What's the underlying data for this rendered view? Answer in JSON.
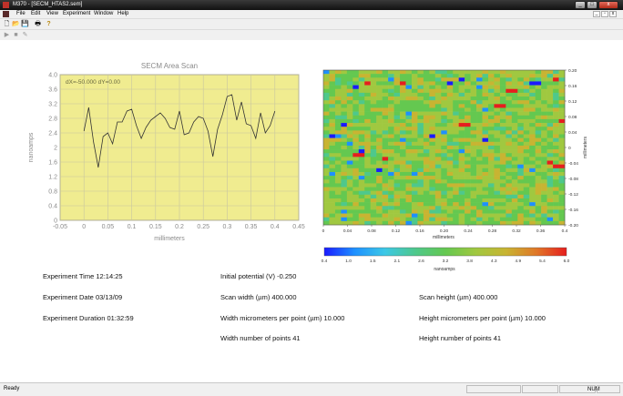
{
  "window": {
    "title": "M370 - [SECM_HTAS2.sem]",
    "minimize": "_",
    "maximize": "□",
    "close": "x"
  },
  "menu": [
    {
      "label": "File"
    },
    {
      "label": "Edit"
    },
    {
      "label": "View"
    },
    {
      "label": "Experiment"
    },
    {
      "label": "Window"
    },
    {
      "label": "Help"
    }
  ],
  "mdi_controls": {
    "minimize": "_",
    "restore": "▫",
    "close": "x"
  },
  "toolbar1": [
    {
      "name": "new-file-icon",
      "glyph": "🗋"
    },
    {
      "name": "open-folder-icon",
      "glyph": "📂"
    },
    {
      "name": "save-icon",
      "glyph": "💾"
    },
    {
      "name": "print-icon",
      "glyph": "🖶"
    },
    {
      "name": "help-icon",
      "glyph": "?"
    }
  ],
  "toolbar2": [
    {
      "name": "play-icon",
      "glyph": "▶"
    },
    {
      "name": "stop-icon",
      "glyph": "■"
    },
    {
      "name": "pen-icon",
      "glyph": "✎"
    }
  ],
  "line_chart": {
    "title": "SECM Area Scan",
    "xlabel": "millimeters",
    "ylabel": "nanoamps",
    "readout": "dX=-50.000   dY=0.00",
    "plot_bg": "#f0ec90",
    "line_color": "#333333"
  },
  "chart_data": [
    {
      "type": "line",
      "title": "SECM Area Scan",
      "xlabel": "millimeters",
      "ylabel": "nanoamps",
      "xlim": [
        -0.05,
        0.45
      ],
      "ylim": [
        0,
        4.0
      ],
      "xticks": [
        "-0.05",
        "0",
        "0.05",
        "0.1",
        "0.15",
        "0.2",
        "0.25",
        "0.3",
        "0.35",
        "0.4",
        "0.45"
      ],
      "yticks": [
        "0",
        "0.4",
        "0.8",
        "1.2",
        "1.6",
        "2",
        "2.4",
        "2.8",
        "3.2",
        "3.6",
        "4.0"
      ],
      "grid": true,
      "series": [
        {
          "x": [
            0.0,
            0.01,
            0.02,
            0.03,
            0.04,
            0.05,
            0.06,
            0.07,
            0.08,
            0.09,
            0.1,
            0.11,
            0.12,
            0.13,
            0.14,
            0.15,
            0.16,
            0.17,
            0.18,
            0.19,
            0.2,
            0.21,
            0.22,
            0.23,
            0.24,
            0.25,
            0.26,
            0.27,
            0.28,
            0.29,
            0.3,
            0.31,
            0.32,
            0.33,
            0.34,
            0.35,
            0.36,
            0.37,
            0.38,
            0.39,
            0.4
          ],
          "y": [
            2.45,
            3.1,
            2.15,
            1.45,
            2.3,
            2.4,
            2.1,
            2.7,
            2.7,
            3.0,
            3.05,
            2.6,
            2.25,
            2.55,
            2.75,
            2.85,
            2.95,
            2.8,
            2.55,
            2.5,
            3.0,
            2.35,
            2.4,
            2.7,
            2.85,
            2.8,
            2.45,
            1.75,
            2.5,
            2.9,
            3.4,
            3.45,
            2.75,
            3.25,
            2.65,
            2.6,
            2.25,
            2.95,
            2.4,
            2.6,
            3.0
          ]
        }
      ]
    },
    {
      "type": "heatmap",
      "xlabel": "millimeters",
      "ylabel": "millimeters",
      "colorbar_label": "nanoamps",
      "xticks": [
        "0",
        "0.04",
        "0.08",
        "0.12",
        "0.16",
        "0.20",
        "0.24",
        "0.28",
        "0.32",
        "0.36",
        "0.4"
      ],
      "yticks": [
        "0.20",
        "0.16",
        "0.12",
        "0.08",
        "0.04",
        "0",
        "-0.04",
        "-0.08",
        "-0.12",
        "-0.16",
        "-0.20"
      ],
      "colorbar_ticks": [
        "0.4",
        "1.0",
        "1.5",
        "2.1",
        "2.6",
        "3.2",
        "3.8",
        "4.3",
        "4.9",
        "5.4",
        "6.0"
      ],
      "colorscale": [
        "#1a1aff",
        "#1e90ff",
        "#3cc8e6",
        "#4ec88c",
        "#64c850",
        "#a0c840",
        "#c8b432",
        "#e07828",
        "#e61e1e"
      ]
    }
  ],
  "info": {
    "col1": {
      "time": "Experiment Time 12:14:25",
      "date": "Experiment Date 03/13/09",
      "duration": "Experiment Duration 01:32:59"
    },
    "col2": {
      "initial_potential": "Initial potential (V) -0.250",
      "scan_width": "Scan width (µm) 400.000",
      "width_per_point": "Width micrometers per point (µm) 10.000",
      "width_points": "Width number of points 41"
    },
    "col3": {
      "scan_height": "Scan height (µm) 400.000",
      "height_per_point": "Height micrometers per point (µm) 10.000",
      "height_points": "Height number of points 41"
    }
  },
  "status": {
    "text": "Ready",
    "num": "NUM"
  }
}
